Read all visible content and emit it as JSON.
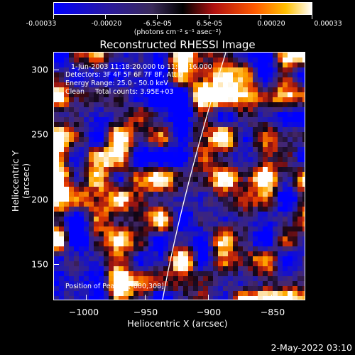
{
  "title": "Reconstructed RHESSI Image",
  "colorbar": {
    "ticks": [
      "-0.00033",
      "-0.00020",
      "-6.5e-05",
      "6.5e-05",
      "0.00020",
      "0.00033"
    ],
    "unit": "(photons cm⁻² s⁻¹ asec⁻²)",
    "range": [
      -0.00033,
      0.00033
    ]
  },
  "annotations": {
    "time": "1-Jun-2003 11:18:20.000 to 11:22:16.000",
    "detectors": "Detectors: 3F 4F 5F 6F 7F 8F, Att 0",
    "energy": "Energy Range: 25.0 - 50.0 keV",
    "clean": "Clean     Total counts: 3.95E+03",
    "peak": "Position of Peak = [-880,308]"
  },
  "axes": {
    "xlabel": "Heliocentric X (arcsec)",
    "ylabel": "Heliocentric Y (arcsec)",
    "xticks": [
      "−1000",
      "−950",
      "−900",
      "−850"
    ],
    "yticks": [
      "300",
      "250",
      "200",
      "150"
    ],
    "xlim": [
      -1020,
      -829
    ],
    "ylim": [
      118,
      312
    ]
  },
  "timestamp": "2-May-2022 03:10",
  "colors": {
    "background": "#000000",
    "limb_line": "#ffffff"
  }
}
